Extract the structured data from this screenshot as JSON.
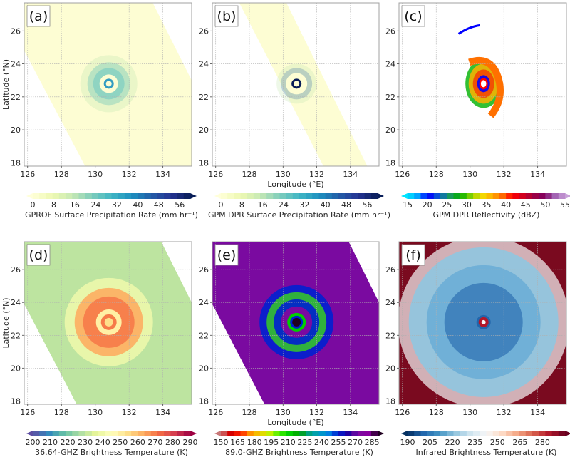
{
  "chart_data": [
    {
      "id": "a",
      "type": "heatmap",
      "panel_label": "(a)",
      "xlabel": "",
      "ylabel": "Latitude (°N)",
      "xlim": [
        125.8,
        135.7
      ],
      "ylim": [
        17.8,
        27.7
      ],
      "xticks": [
        "126",
        "128",
        "130",
        "132",
        "134"
      ],
      "yticks": [
        "18",
        "20",
        "22",
        "24",
        "26"
      ],
      "grid": true,
      "swath": "wide, tilted NNW–SSE",
      "storm_center": [
        130.8,
        22.8
      ],
      "colorbar": {
        "label": "GPROF Surface Precipitation Rate (mm hr⁻¹)",
        "colormap": "YlGnBu",
        "range": [
          0,
          60
        ],
        "ticks": [
          "0",
          "8",
          "16",
          "24",
          "32",
          "40",
          "48",
          "56"
        ],
        "extend": "both",
        "colors": [
          "#ffffd9",
          "#edf8b1",
          "#c7e9b4",
          "#7fcdbb",
          "#41b6c4",
          "#1d91c0",
          "#225ea8",
          "#253494",
          "#081d58"
        ]
      }
    },
    {
      "id": "b",
      "type": "heatmap",
      "panel_label": "(b)",
      "xlabel": "Longitude (°E)",
      "ylabel": "",
      "xlim": [
        125.8,
        135.7
      ],
      "ylim": [
        17.8,
        27.7
      ],
      "xticks": [
        "126",
        "128",
        "130",
        "132",
        "134"
      ],
      "yticks": [
        "18",
        "20",
        "22",
        "24",
        "26"
      ],
      "grid": true,
      "swath": "narrow, tilted NNW–SSE",
      "storm_center": [
        130.8,
        22.8
      ],
      "colorbar": {
        "label": "GPM DPR Surface Precipitation Rate (mm hr⁻¹)",
        "colormap": "YlGnBu",
        "range": [
          0,
          60
        ],
        "ticks": [
          "0",
          "8",
          "16",
          "24",
          "32",
          "40",
          "48",
          "56"
        ],
        "extend": "both",
        "colors": [
          "#ffffd9",
          "#edf8b1",
          "#c7e9b4",
          "#7fcdbb",
          "#41b6c4",
          "#1d91c0",
          "#225ea8",
          "#253494",
          "#081d58"
        ]
      }
    },
    {
      "id": "c",
      "type": "heatmap",
      "panel_label": "(c)",
      "xlabel": "",
      "ylabel": "",
      "xlim": [
        125.8,
        135.7
      ],
      "ylim": [
        17.8,
        27.7
      ],
      "xticks": [
        "126",
        "128",
        "130",
        "132",
        "134"
      ],
      "yticks": [
        "18",
        "20",
        "22",
        "24",
        "26"
      ],
      "grid": true,
      "storm_center": [
        130.8,
        22.8
      ],
      "colorbar": {
        "label": "GPM DPR Reflectivity (dBZ)",
        "colormap": "NWS reflectivity",
        "range": [
          15,
          55
        ],
        "ticks": [
          "15",
          "20",
          "25",
          "30",
          "35",
          "40",
          "45",
          "50",
          "55"
        ],
        "extend": "both",
        "colors": [
          "#00e5ff",
          "#00a0ff",
          "#0000ff",
          "#0a5fd0",
          "#1a9a60",
          "#00b000",
          "#80d000",
          "#f0e000",
          "#ffb000",
          "#ff7000",
          "#ff0000",
          "#d00020",
          "#a00040",
          "#800060",
          "#a060b0",
          "#c8a0d8"
        ]
      }
    },
    {
      "id": "d",
      "type": "heatmap",
      "panel_label": "(d)",
      "xlabel": "",
      "ylabel": "Latitude (°N)",
      "xlim": [
        125.8,
        135.7
      ],
      "ylim": [
        17.8,
        27.7
      ],
      "xticks": [
        "126",
        "128",
        "130",
        "132",
        "134"
      ],
      "yticks": [
        "18",
        "20",
        "22",
        "24",
        "26"
      ],
      "grid": true,
      "storm_center": [
        130.8,
        22.8
      ],
      "colorbar": {
        "label": "36.64-GHZ Brightness Temperature (K)",
        "colormap": "Spectral_r",
        "range": [
          200,
          290
        ],
        "ticks": [
          "200",
          "210",
          "220",
          "230",
          "240",
          "250",
          "260",
          "270",
          "280",
          "290"
        ],
        "extend": "both",
        "colors": [
          "#5e4fa2",
          "#3288bd",
          "#66c2a5",
          "#abdda4",
          "#e6f598",
          "#ffffbf",
          "#fee08b",
          "#fdae61",
          "#f46d43",
          "#d53e4f",
          "#9e0142"
        ]
      }
    },
    {
      "id": "e",
      "type": "heatmap",
      "panel_label": "(e)",
      "xlabel": "Longitude (°E)",
      "ylabel": "",
      "xlim": [
        125.8,
        135.7
      ],
      "ylim": [
        17.8,
        27.7
      ],
      "xticks": [
        "126",
        "128",
        "130",
        "132",
        "134"
      ],
      "yticks": [
        "18",
        "20",
        "22",
        "24",
        "26"
      ],
      "grid": true,
      "storm_center": [
        130.8,
        22.8
      ],
      "colorbar": {
        "label": "89.0-GHZ Brightness Temperature (K)",
        "colormap": "nipy_spectral_r",
        "range": [
          150,
          290
        ],
        "ticks": [
          "150",
          "165",
          "180",
          "195",
          "210",
          "225",
          "240",
          "255",
          "270",
          "285"
        ],
        "extend": "both",
        "colors": [
          "#c87878",
          "#d40000",
          "#ff2000",
          "#ff9000",
          "#f0d000",
          "#c0f000",
          "#40f000",
          "#00d000",
          "#00a000",
          "#00a080",
          "#00a0c0",
          "#0080e0",
          "#0020d0",
          "#2000a0",
          "#7a0aa0",
          "#8800a0",
          "#200020"
        ]
      }
    },
    {
      "id": "f",
      "type": "heatmap",
      "panel_label": "(f)",
      "xlabel": "",
      "ylabel": "",
      "xlim": [
        125.8,
        135.7
      ],
      "ylim": [
        17.8,
        27.7
      ],
      "xticks": [
        "126",
        "128",
        "130",
        "132",
        "134"
      ],
      "yticks": [
        "18",
        "20",
        "22",
        "24",
        "26"
      ],
      "grid": true,
      "storm_center": [
        130.8,
        22.8
      ],
      "colorbar": {
        "label": "Infrared Brightness Temperature (K)",
        "colormap": "RdBu_r",
        "range": [
          190,
          295
        ],
        "ticks": [
          "190",
          "205",
          "220",
          "235",
          "250",
          "265",
          "280"
        ],
        "extend": "both",
        "colors": [
          "#053061",
          "#2166ac",
          "#4393c3",
          "#92c5de",
          "#d1e5f0",
          "#f7f7f7",
          "#fddbc7",
          "#f4a582",
          "#d6604d",
          "#b2182b",
          "#67001f"
        ]
      }
    }
  ]
}
